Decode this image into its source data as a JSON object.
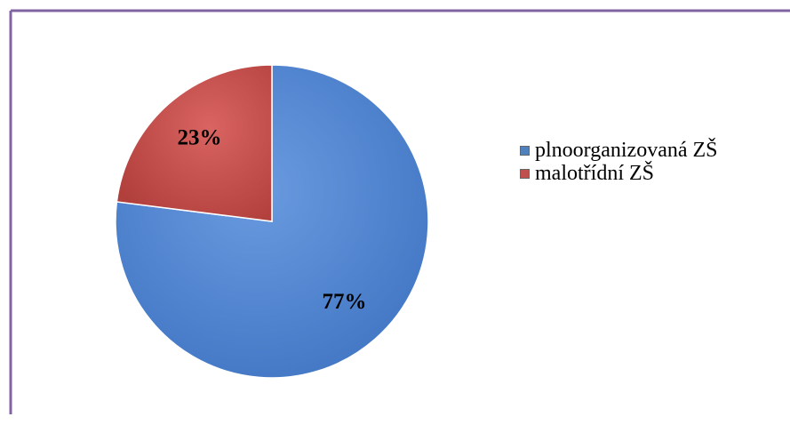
{
  "chart_data": {
    "type": "pie",
    "categories": [
      "plnoorganizovaná ZŠ",
      "malotřídní ZŠ"
    ],
    "values": [
      77,
      23
    ],
    "value_labels": [
      "77%",
      "23%"
    ],
    "colors": [
      "#4f81bd",
      "#c0504d"
    ],
    "legend": "right"
  }
}
